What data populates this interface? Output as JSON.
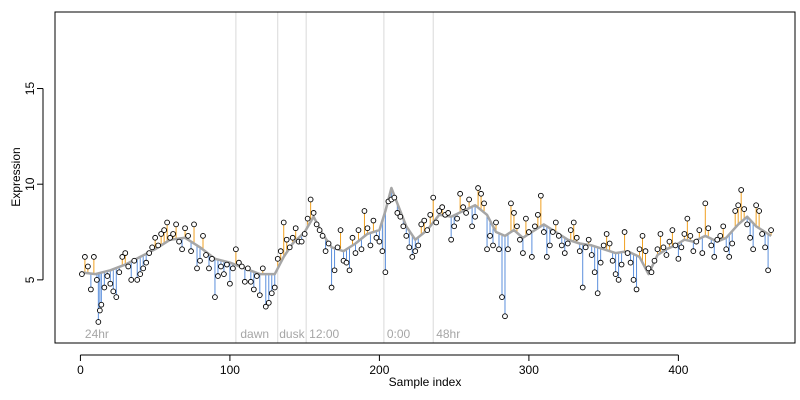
{
  "chart_data": {
    "type": "scatter",
    "title": "",
    "xlabel": "Sample index",
    "ylabel": "Expression",
    "xlim": [
      -17,
      478
    ],
    "ylim": [
      1.7,
      19.0
    ],
    "x_ticks": [
      0,
      100,
      200,
      300,
      400
    ],
    "y_ticks": [
      5,
      10,
      15
    ],
    "grid": false,
    "phase_markers": [
      {
        "x": 104,
        "label": ""
      },
      {
        "x": 132,
        "label": ""
      },
      {
        "x": 151,
        "label": ""
      },
      {
        "x": 203,
        "label": ""
      },
      {
        "x": 236,
        "label": ""
      }
    ],
    "phase_labels": [
      {
        "x": 3,
        "label": "24hr"
      },
      {
        "x": 107,
        "label": "dawn"
      },
      {
        "x": 133,
        "label": "dusk"
      },
      {
        "x": 153,
        "label": "12:00"
      },
      {
        "x": 205,
        "label": "0:00"
      },
      {
        "x": 238,
        "label": "48hr"
      }
    ],
    "colors": {
      "points": "#000000",
      "fit_line": "#a6a6a6",
      "residual_positive": "#f0a020",
      "residual_negative": "#5b8fdc",
      "phase_line": "#d9d9d9"
    },
    "series": [
      {
        "points": [
          [
            1,
            5.3
          ],
          [
            3,
            6.2
          ],
          [
            5,
            5.7
          ],
          [
            7,
            4.5
          ],
          [
            9,
            6.2
          ],
          [
            11,
            5.0
          ],
          [
            12,
            2.8
          ],
          [
            13,
            3.4
          ],
          [
            14,
            3.7
          ],
          [
            16,
            4.6
          ],
          [
            18,
            5.2
          ],
          [
            20,
            4.8
          ],
          [
            22,
            4.4
          ],
          [
            24,
            4.1
          ],
          [
            26,
            5.4
          ],
          [
            28,
            6.2
          ],
          [
            30,
            6.4
          ],
          [
            32,
            5.7
          ],
          [
            34,
            5.0
          ],
          [
            36,
            6.0
          ],
          [
            38,
            5.0
          ],
          [
            40,
            5.3
          ],
          [
            42,
            5.6
          ],
          [
            44,
            5.9
          ],
          [
            46,
            6.4
          ],
          [
            48,
            6.7
          ],
          [
            50,
            7.2
          ],
          [
            52,
            6.8
          ],
          [
            54,
            7.4
          ],
          [
            56,
            7.6
          ],
          [
            58,
            8.0
          ],
          [
            60,
            7.2
          ],
          [
            62,
            7.4
          ],
          [
            64,
            7.9
          ],
          [
            66,
            7.0
          ],
          [
            68,
            6.6
          ],
          [
            70,
            7.7
          ],
          [
            72,
            7.3
          ],
          [
            74,
            6.5
          ],
          [
            76,
            7.9
          ],
          [
            78,
            5.6
          ],
          [
            80,
            6.0
          ],
          [
            82,
            7.3
          ],
          [
            84,
            6.3
          ],
          [
            86,
            5.6
          ],
          [
            88,
            6.1
          ],
          [
            90,
            4.1
          ],
          [
            92,
            5.2
          ],
          [
            94,
            5.7
          ],
          [
            96,
            5.3
          ],
          [
            98,
            5.8
          ],
          [
            100,
            4.8
          ],
          [
            102,
            5.6
          ],
          [
            104,
            6.6
          ],
          [
            106,
            5.9
          ],
          [
            108,
            5.7
          ],
          [
            110,
            4.9
          ],
          [
            112,
            5.6
          ],
          [
            114,
            4.9
          ],
          [
            116,
            4.5
          ],
          [
            118,
            5.2
          ],
          [
            120,
            4.2
          ],
          [
            122,
            5.6
          ],
          [
            124,
            3.6
          ],
          [
            126,
            3.8
          ],
          [
            128,
            4.3
          ],
          [
            130,
            4.6
          ],
          [
            132,
            6.1
          ],
          [
            134,
            6.5
          ],
          [
            136,
            8.0
          ],
          [
            138,
            7.1
          ],
          [
            140,
            6.7
          ],
          [
            142,
            7.2
          ],
          [
            144,
            7.7
          ],
          [
            146,
            7.0
          ],
          [
            148,
            7.0
          ],
          [
            150,
            7.4
          ],
          [
            152,
            8.2
          ],
          [
            154,
            9.2
          ],
          [
            156,
            8.5
          ],
          [
            158,
            7.9
          ],
          [
            160,
            7.6
          ],
          [
            162,
            7.3
          ],
          [
            164,
            6.5
          ],
          [
            166,
            6.9
          ],
          [
            168,
            4.6
          ],
          [
            170,
            5.5
          ],
          [
            172,
            6.7
          ],
          [
            174,
            7.6
          ],
          [
            176,
            6.0
          ],
          [
            178,
            5.9
          ],
          [
            180,
            5.5
          ],
          [
            182,
            7.2
          ],
          [
            184,
            6.4
          ],
          [
            186,
            7.6
          ],
          [
            188,
            6.6
          ],
          [
            190,
            8.6
          ],
          [
            192,
            7.7
          ],
          [
            194,
            6.8
          ],
          [
            196,
            8.1
          ],
          [
            198,
            7.2
          ],
          [
            200,
            7.0
          ],
          [
            202,
            6.5
          ],
          [
            204,
            5.4
          ],
          [
            206,
            9.1
          ],
          [
            208,
            9.2
          ],
          [
            210,
            9.3
          ],
          [
            212,
            8.5
          ],
          [
            214,
            8.3
          ],
          [
            216,
            7.8
          ],
          [
            218,
            7.3
          ],
          [
            220,
            6.7
          ],
          [
            222,
            6.2
          ],
          [
            224,
            6.5
          ],
          [
            226,
            6.8
          ],
          [
            228,
            7.9
          ],
          [
            230,
            8.1
          ],
          [
            232,
            7.6
          ],
          [
            234,
            8.4
          ],
          [
            236,
            9.3
          ],
          [
            238,
            8.0
          ],
          [
            240,
            8.6
          ],
          [
            242,
            8.8
          ],
          [
            244,
            8.4
          ],
          [
            246,
            8.5
          ],
          [
            248,
            7.1
          ],
          [
            250,
            7.8
          ],
          [
            252,
            8.2
          ],
          [
            254,
            9.5
          ],
          [
            256,
            8.8
          ],
          [
            258,
            8.5
          ],
          [
            260,
            9.2
          ],
          [
            262,
            7.8
          ],
          [
            264,
            8.3
          ],
          [
            266,
            9.8
          ],
          [
            268,
            9.5
          ],
          [
            270,
            9.0
          ],
          [
            272,
            6.6
          ],
          [
            274,
            7.3
          ],
          [
            276,
            6.8
          ],
          [
            278,
            8.0
          ],
          [
            280,
            6.6
          ],
          [
            282,
            4.1
          ],
          [
            284,
            3.1
          ],
          [
            286,
            6.6
          ],
          [
            288,
            9.0
          ],
          [
            290,
            8.5
          ],
          [
            292,
            7.8
          ],
          [
            294,
            7.1
          ],
          [
            296,
            6.4
          ],
          [
            298,
            8.2
          ],
          [
            300,
            7.5
          ],
          [
            302,
            6.2
          ],
          [
            304,
            7.8
          ],
          [
            306,
            8.4
          ],
          [
            308,
            9.4
          ],
          [
            310,
            7.5
          ],
          [
            312,
            6.2
          ],
          [
            314,
            6.8
          ],
          [
            316,
            7.5
          ],
          [
            318,
            8.0
          ],
          [
            320,
            7.3
          ],
          [
            322,
            6.8
          ],
          [
            324,
            6.4
          ],
          [
            326,
            6.9
          ],
          [
            328,
            7.6
          ],
          [
            330,
            8.0
          ],
          [
            332,
            7.2
          ],
          [
            334,
            6.5
          ],
          [
            336,
            4.6
          ],
          [
            338,
            6.7
          ],
          [
            340,
            7.1
          ],
          [
            342,
            6.3
          ],
          [
            344,
            5.4
          ],
          [
            346,
            4.3
          ],
          [
            348,
            5.9
          ],
          [
            350,
            6.8
          ],
          [
            352,
            7.4
          ],
          [
            354,
            6.9
          ],
          [
            356,
            6.0
          ],
          [
            358,
            5.3
          ],
          [
            360,
            5.0
          ],
          [
            362,
            5.8
          ],
          [
            364,
            7.5
          ],
          [
            366,
            6.4
          ],
          [
            368,
            5.9
          ],
          [
            370,
            5.0
          ],
          [
            372,
            4.5
          ],
          [
            374,
            6.6
          ],
          [
            376,
            7.3
          ],
          [
            378,
            6.5
          ],
          [
            380,
            5.6
          ],
          [
            382,
            5.4
          ],
          [
            384,
            6.0
          ],
          [
            386,
            6.6
          ],
          [
            388,
            7.4
          ],
          [
            390,
            6.7
          ],
          [
            392,
            6.3
          ],
          [
            394,
            7.0
          ],
          [
            396,
            7.6
          ],
          [
            398,
            6.8
          ],
          [
            400,
            6.1
          ],
          [
            402,
            6.7
          ],
          [
            404,
            7.4
          ],
          [
            406,
            8.2
          ],
          [
            408,
            7.3
          ],
          [
            410,
            6.5
          ],
          [
            412,
            7.0
          ],
          [
            414,
            7.6
          ],
          [
            416,
            6.4
          ],
          [
            418,
            9.0
          ],
          [
            420,
            7.7
          ],
          [
            422,
            6.8
          ],
          [
            424,
            6.2
          ],
          [
            426,
            7.1
          ],
          [
            428,
            7.3
          ],
          [
            430,
            7.8
          ],
          [
            432,
            6.6
          ],
          [
            434,
            6.2
          ],
          [
            436,
            6.9
          ],
          [
            438,
            8.6
          ],
          [
            440,
            8.9
          ],
          [
            442,
            9.7
          ],
          [
            444,
            8.7
          ],
          [
            446,
            7.9
          ],
          [
            448,
            7.2
          ],
          [
            450,
            6.6
          ],
          [
            452,
            8.9
          ],
          [
            454,
            8.6
          ],
          [
            456,
            7.4
          ],
          [
            458,
            6.7
          ],
          [
            460,
            5.5
          ],
          [
            462,
            7.6
          ]
        ],
        "fit": [
          [
            0,
            5.4
          ],
          [
            10,
            5.3
          ],
          [
            20,
            5.5
          ],
          [
            30,
            5.8
          ],
          [
            40,
            6.2
          ],
          [
            50,
            6.6
          ],
          [
            60,
            7.1
          ],
          [
            70,
            7.2
          ],
          [
            80,
            6.7
          ],
          [
            90,
            6.1
          ],
          [
            100,
            5.9
          ],
          [
            110,
            5.6
          ],
          [
            120,
            5.3
          ],
          [
            130,
            5.3
          ],
          [
            136,
            6.2
          ],
          [
            142,
            6.9
          ],
          [
            150,
            7.5
          ],
          [
            156,
            8.3
          ],
          [
            162,
            7.4
          ],
          [
            168,
            6.7
          ],
          [
            176,
            6.5
          ],
          [
            184,
            6.9
          ],
          [
            192,
            7.4
          ],
          [
            200,
            7.6
          ],
          [
            204,
            8.6
          ],
          [
            208,
            9.8
          ],
          [
            212,
            9.0
          ],
          [
            218,
            7.8
          ],
          [
            224,
            7.1
          ],
          [
            232,
            7.6
          ],
          [
            240,
            8.4
          ],
          [
            248,
            8.3
          ],
          [
            256,
            8.6
          ],
          [
            264,
            8.9
          ],
          [
            272,
            8.4
          ],
          [
            278,
            7.5
          ],
          [
            284,
            7.3
          ],
          [
            290,
            7.6
          ],
          [
            296,
            7.2
          ],
          [
            302,
            7.5
          ],
          [
            310,
            7.9
          ],
          [
            318,
            7.5
          ],
          [
            326,
            7.1
          ],
          [
            334,
            6.9
          ],
          [
            342,
            6.8
          ],
          [
            350,
            6.6
          ],
          [
            358,
            6.4
          ],
          [
            366,
            6.5
          ],
          [
            374,
            6.2
          ],
          [
            380,
            5.3
          ],
          [
            386,
            6.3
          ],
          [
            392,
            6.6
          ],
          [
            398,
            6.8
          ],
          [
            404,
            7.1
          ],
          [
            410,
            7.0
          ],
          [
            418,
            7.3
          ],
          [
            426,
            7.0
          ],
          [
            432,
            7.2
          ],
          [
            440,
            7.9
          ],
          [
            446,
            8.3
          ],
          [
            452,
            7.8
          ],
          [
            458,
            7.5
          ],
          [
            462,
            7.3
          ]
        ]
      }
    ]
  }
}
